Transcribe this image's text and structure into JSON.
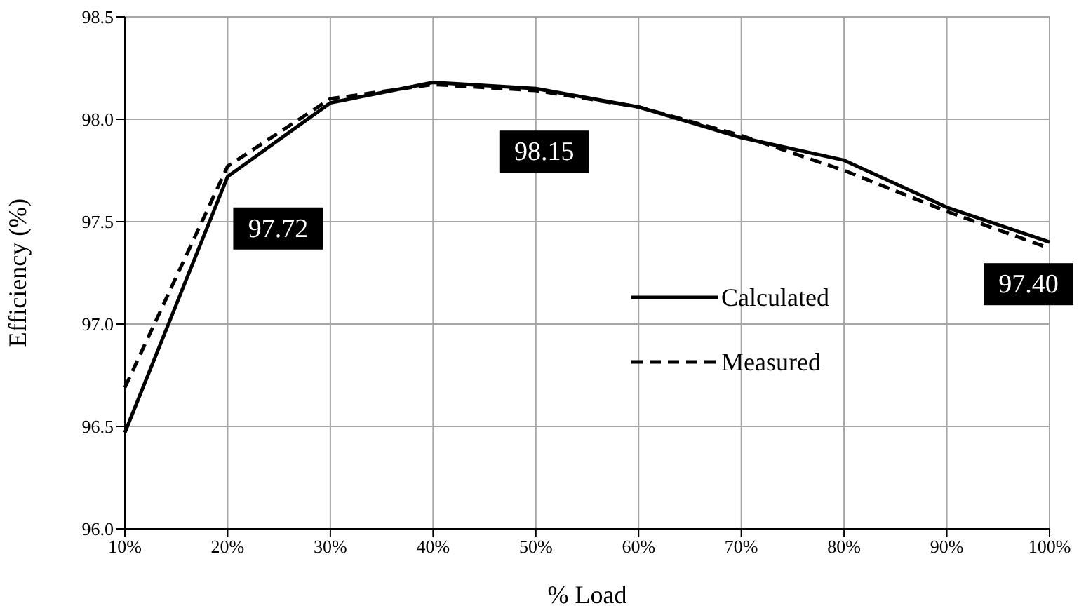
{
  "chart_data": {
    "type": "line",
    "xlabel": "% Load",
    "ylabel": "Efficiency (%)",
    "categories": [
      "10%",
      "20%",
      "30%",
      "40%",
      "50%",
      "60%",
      "70%",
      "80%",
      "90%",
      "100%"
    ],
    "series": [
      {
        "name": "Calculated",
        "color": "#000000",
        "line_style": "solid",
        "values": [
          96.47,
          97.72,
          98.08,
          98.18,
          98.15,
          98.06,
          97.91,
          97.8,
          97.57,
          97.4
        ]
      },
      {
        "name": "Measured",
        "color": "#000000",
        "line_style": "dashed",
        "values": [
          96.69,
          97.77,
          98.1,
          98.17,
          98.14,
          98.06,
          97.92,
          97.75,
          97.55,
          97.37
        ]
      }
    ],
    "ylim": [
      96,
      98.5
    ],
    "yticks": [
      {
        "value": 96,
        "label": "96.0"
      },
      {
        "value": 96.5,
        "label": "96.5"
      },
      {
        "value": 97,
        "label": "97.0"
      },
      {
        "value": 97.5,
        "label": "97.5"
      },
      {
        "value": 98,
        "label": "98.0"
      },
      {
        "value": 98.5,
        "label": "98.5"
      }
    ],
    "annotations": [
      {
        "text": "97.72",
        "x": "20%",
        "y": 97.72
      },
      {
        "text": "98.15",
        "x": "50%",
        "y": 98.15
      },
      {
        "text": "97.40",
        "x": "100%",
        "y": 97.4
      }
    ],
    "grid": true,
    "legend": "right",
    "marker": "none"
  }
}
